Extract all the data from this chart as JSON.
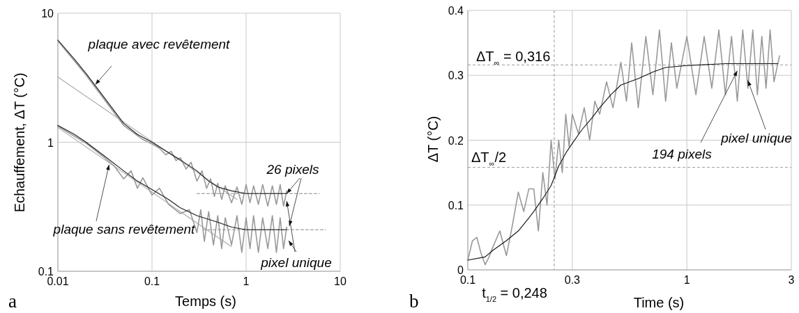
{
  "chart_data": [
    {
      "type": "line",
      "xlabel": "Temps  (s)",
      "ylabel": "Echauffement, ΔT  (°C)",
      "log": "xy",
      "grid": true,
      "xlim": [
        0.01,
        10
      ],
      "xticks": [
        0.01,
        0.1,
        1,
        10
      ],
      "ylim": [
        0.1,
        10
      ],
      "yticks": [
        0.1,
        1,
        10
      ],
      "series": [
        {
          "color": "#aaaaaa",
          "line_style": "solid",
          "x": [
            0.01,
            0.8
          ],
          "values": [
            3.2,
            0.36
          ]
        },
        {
          "color": "#aaaaaa",
          "line_style": "solid",
          "x": [
            0.01,
            0.7
          ],
          "values": [
            1.3,
            0.155
          ]
        },
        {
          "color": "#888888",
          "line_style": "dashed",
          "x": [
            0.3,
            6
          ],
          "values": [
            0.4,
            0.4
          ]
        },
        {
          "color": "#888888",
          "line_style": "dashed",
          "x": [
            0.35,
            7
          ],
          "values": [
            0.21,
            0.21
          ]
        },
        {
          "color": "#999999",
          "line_style": "solid",
          "x": [
            0.01,
            0.02,
            0.05,
            0.08,
            0.1,
            0.12,
            0.14,
            0.16,
            0.18,
            0.2,
            0.23,
            0.26,
            0.3,
            0.34,
            0.38,
            0.42,
            0.46,
            0.5,
            0.55,
            0.6,
            0.7,
            0.8,
            0.9,
            1,
            1.1,
            1.2,
            1.35,
            1.5,
            1.7,
            1.9,
            2.1,
            2.3,
            2.5,
            2.7
          ],
          "values": [
            6.1,
            3.3,
            1.35,
            1.05,
            0.97,
            0.9,
            0.8,
            0.85,
            0.72,
            0.76,
            0.62,
            0.7,
            0.5,
            0.6,
            0.44,
            0.52,
            0.38,
            0.48,
            0.36,
            0.46,
            0.34,
            0.45,
            0.33,
            0.47,
            0.34,
            0.46,
            0.33,
            0.47,
            0.32,
            0.46,
            0.33,
            0.47,
            0.32,
            0.42
          ]
        },
        {
          "color": "#999999",
          "line_style": "solid",
          "x": [
            0.01,
            0.02,
            0.03,
            0.04,
            0.05,
            0.06,
            0.07,
            0.08,
            0.1,
            0.12,
            0.15,
            0.2,
            0.25,
            0.3,
            0.33,
            0.36,
            0.4,
            0.45,
            0.5,
            0.55,
            0.6,
            0.7,
            0.8,
            0.9,
            1,
            1.1,
            1.2,
            1.35,
            1.5,
            1.7,
            1.9,
            2.1,
            2.3,
            2.5,
            2.7
          ],
          "values": [
            1.33,
            0.98,
            0.78,
            0.65,
            0.52,
            0.6,
            0.44,
            0.53,
            0.39,
            0.44,
            0.33,
            0.28,
            0.3,
            0.2,
            0.3,
            0.17,
            0.29,
            0.16,
            0.27,
            0.15,
            0.26,
            0.16,
            0.27,
            0.14,
            0.26,
            0.15,
            0.27,
            0.14,
            0.26,
            0.15,
            0.27,
            0.14,
            0.26,
            0.15,
            0.22
          ]
        },
        {
          "color": "#1a1a1a",
          "line_style": "solid",
          "x": [
            0.01,
            0.015,
            0.02,
            0.03,
            0.05,
            0.07,
            0.1,
            0.15,
            0.2,
            0.3,
            0.4,
            0.5,
            0.7,
            1,
            1.5,
            2,
            2.7
          ],
          "values": [
            6.2,
            4.4,
            3.4,
            2.3,
            1.4,
            1.15,
            1.0,
            0.83,
            0.73,
            0.6,
            0.5,
            0.45,
            0.42,
            0.4,
            0.4,
            0.4,
            0.4
          ]
        },
        {
          "color": "#1a1a1a",
          "line_style": "solid",
          "x": [
            0.01,
            0.015,
            0.02,
            0.03,
            0.05,
            0.07,
            0.1,
            0.15,
            0.2,
            0.3,
            0.5,
            0.7,
            1,
            1.5,
            2,
            2.7
          ],
          "values": [
            1.35,
            1.15,
            1.0,
            0.8,
            0.6,
            0.5,
            0.43,
            0.36,
            0.31,
            0.27,
            0.24,
            0.22,
            0.21,
            0.21,
            0.21,
            0.21
          ]
        }
      ],
      "annotations": [
        {
          "text": "plaque avec revêtement",
          "x": 0.025,
          "y": 2.8
        },
        {
          "text": "plaque sans revêtement",
          "x": 0.035,
          "y": 0.67
        },
        {
          "text": "26 pixels",
          "x": 2.7,
          "y": 0.4
        },
        {
          "text": "pixel unique",
          "x": 2.7,
          "y": 0.35
        },
        "a"
      ]
    },
    {
      "type": "line",
      "xlabel": "Time (s)",
      "ylabel": "ΔT  (°C)",
      "log": "x",
      "grid": true,
      "xlim": [
        0.1,
        3
      ],
      "xticks": [
        0.1,
        0.3,
        1,
        3
      ],
      "ylim": [
        0,
        0.4
      ],
      "yticks": [
        0,
        0.1,
        0.2,
        0.3,
        0.4
      ],
      "ref_lines": [
        {
          "axis": "y",
          "value": 0.316,
          "label": "ΔT$_{∞}$ = 0,316",
          "line_style": "dashed",
          "color": "#999999"
        },
        {
          "axis": "y",
          "value": 0.158,
          "label": "ΔT$_{∞}$/2",
          "line_style": "dashed",
          "color": "#999999"
        },
        {
          "axis": "x",
          "value": 0.248,
          "label": "t$_{1/2}$ = 0,248",
          "line_style": "dashed",
          "color": "#999999"
        }
      ],
      "series": [
        {
          "color": "#999999",
          "line_style": "solid",
          "x": [
            0.1,
            0.105,
            0.11,
            0.115,
            0.12,
            0.125,
            0.13,
            0.14,
            0.15,
            0.16,
            0.17,
            0.18,
            0.19,
            0.2,
            0.21,
            0.22,
            0.23,
            0.24,
            0.25,
            0.26,
            0.27,
            0.28,
            0.29,
            0.3,
            0.32,
            0.34,
            0.36,
            0.38,
            0.4,
            0.43,
            0.46,
            0.5,
            0.53,
            0.56,
            0.6,
            0.65,
            0.7,
            0.75,
            0.8,
            0.85,
            0.9,
            1,
            1.1,
            1.2,
            1.3,
            1.4,
            1.5,
            1.6,
            1.7,
            1.8,
            1.9,
            2,
            2.1,
            2.2,
            2.3,
            2.4,
            2.5,
            2.65
          ],
          "values": [
            0.015,
            0.045,
            0.05,
            0.025,
            0.008,
            0.02,
            0.035,
            0.06,
            0.022,
            0.07,
            0.12,
            0.09,
            0.125,
            0.125,
            0.06,
            0.15,
            0.1,
            0.2,
            0.14,
            0.2,
            0.15,
            0.24,
            0.19,
            0.24,
            0.21,
            0.25,
            0.2,
            0.26,
            0.24,
            0.29,
            0.25,
            0.32,
            0.26,
            0.35,
            0.25,
            0.36,
            0.27,
            0.37,
            0.26,
            0.35,
            0.28,
            0.36,
            0.27,
            0.36,
            0.28,
            0.37,
            0.27,
            0.36,
            0.26,
            0.37,
            0.28,
            0.37,
            0.27,
            0.36,
            0.28,
            0.37,
            0.29,
            0.33
          ]
        },
        {
          "color": "#111111",
          "line_style": "solid",
          "x": [
            0.1,
            0.12,
            0.13,
            0.15,
            0.17,
            0.19,
            0.2,
            0.22,
            0.24,
            0.26,
            0.28,
            0.3,
            0.33,
            0.37,
            0.4,
            0.45,
            0.5,
            0.6,
            0.7,
            0.8,
            1,
            1.5,
            2,
            2.6
          ],
          "values": [
            0.015,
            0.02,
            0.03,
            0.045,
            0.06,
            0.08,
            0.09,
            0.11,
            0.13,
            0.16,
            0.18,
            0.195,
            0.215,
            0.235,
            0.25,
            0.27,
            0.285,
            0.295,
            0.305,
            0.312,
            0.315,
            0.318,
            0.318,
            0.318
          ]
        }
      ],
      "annotations": [
        {
          "text": "194 pixels",
          "x": 1.7,
          "y": 0.307
        },
        {
          "text": "pixel unique",
          "x": 1.9,
          "y": 0.292
        },
        "b"
      ]
    }
  ]
}
